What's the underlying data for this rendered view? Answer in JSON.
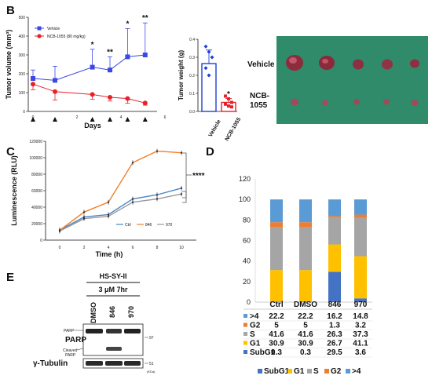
{
  "panel_letters": {
    "b": "B",
    "c": "C",
    "d": "D",
    "e": "E"
  },
  "chart_data": [
    {
      "panel": "B-left",
      "type": "line",
      "ylabel": "Tumor volume (mm³)",
      "xlabel": "Days",
      "ylim": [
        0,
        500
      ],
      "yticks": [
        "0",
        "100",
        "200",
        "300",
        "400",
        "500"
      ],
      "x_tick_labels": [
        "0",
        "2",
        "4",
        "6"
      ],
      "x": [
        0,
        1,
        2.7,
        3.5,
        4.3,
        5.1
      ],
      "series": [
        {
          "name": "Vehicle",
          "color": "#3b48e6",
          "values": [
            175,
            165,
            235,
            220,
            290,
            300
          ],
          "errors": [
            45,
            75,
            95,
            70,
            150,
            170
          ]
        },
        {
          "name": "NCB-1055 (80 mg/kg)",
          "color": "#e8202a",
          "values": [
            145,
            105,
            90,
            75,
            68,
            45
          ],
          "errors": [
            30,
            45,
            25,
            20,
            25,
            12
          ]
        }
      ],
      "significance": [
        {
          "x": 2.7,
          "label": "*"
        },
        {
          "x": 3.5,
          "label": "**"
        },
        {
          "x": 4.3,
          "label": "*"
        },
        {
          "x": 5.1,
          "label": "**"
        }
      ],
      "dosing_days": [
        0,
        1,
        2.7,
        3.5,
        4.3,
        5.1
      ]
    },
    {
      "panel": "B-right",
      "type": "bar",
      "ylabel": "Tumor weight (g)",
      "ylim": [
        0,
        0.4
      ],
      "yticks": [
        "0.0",
        "0.1",
        "0.2",
        "0.3",
        "0.4"
      ],
      "categories": [
        "Vehicle",
        "NCB-1055"
      ],
      "values": [
        0.265,
        0.05
      ],
      "errors": [
        0.075,
        0.022
      ],
      "colors": [
        "#1f3fd6",
        "#e8202a"
      ],
      "points": [
        [
          0.36,
          0.33,
          0.3,
          0.24,
          0.2
        ],
        [
          0.085,
          0.07,
          0.05,
          0.04,
          0.03,
          0.025
        ]
      ],
      "significance": "*"
    },
    {
      "panel": "C",
      "type": "line",
      "ylabel": "Luminescence (RLU)",
      "xlabel": "Time (h)",
      "ylim": [
        0,
        120000
      ],
      "yticks": [
        "0",
        "20000",
        "40000",
        "60000",
        "80000",
        "100000",
        "120000"
      ],
      "x": [
        0,
        2,
        4,
        6,
        8,
        10
      ],
      "series": [
        {
          "name": "Ctrl",
          "color": "#4a86c8",
          "values": [
            12000,
            28000,
            31000,
            50000,
            55000,
            63000
          ]
        },
        {
          "name": "846",
          "color": "#f07f2a",
          "values": [
            12000,
            34000,
            46000,
            94000,
            108000,
            106000
          ]
        },
        {
          "name": "970",
          "color": "#9a9a9a",
          "values": [
            11000,
            26000,
            29000,
            46000,
            50000,
            56000
          ]
        }
      ],
      "significance": "****"
    },
    {
      "panel": "D",
      "type": "bar",
      "stacked": true,
      "ylim": [
        0,
        120
      ],
      "yticks": [
        "0",
        "20",
        "40",
        "60",
        "80",
        "100",
        "120"
      ],
      "categories": [
        "Ctrl",
        "DMSO",
        "846",
        "970"
      ],
      "series": [
        {
          "name": "SubG1",
          "color": "#4472c4",
          "values": [
            0.3,
            0.3,
            29.5,
            3.6
          ]
        },
        {
          "name": "G1",
          "color": "#ffc000",
          "values": [
            30.9,
            30.9,
            26.7,
            41.1
          ]
        },
        {
          "name": "S",
          "color": "#a5a5a5",
          "values": [
            41.6,
            41.6,
            26.3,
            37.3
          ]
        },
        {
          "name": "G2",
          "color": "#ed7d31",
          "values": [
            5,
            5,
            1.3,
            3.2
          ]
        },
        {
          "name": ">4",
          "color": "#5b9bd5",
          "values": [
            22.2,
            22.2,
            16.2,
            14.8
          ]
        }
      ],
      "table_rows": [
        {
          "label": ">4",
          "color": "#5b9bd5",
          "values": [
            "22.2",
            "22.2",
            "16.2",
            "14.8"
          ]
        },
        {
          "label": "G2",
          "color": "#ed7d31",
          "values": [
            "5",
            "5",
            "1.3",
            "3.2"
          ]
        },
        {
          "label": "S",
          "color": "#a5a5a5",
          "values": [
            "41.6",
            "41.6",
            "26.3",
            "37.3"
          ]
        },
        {
          "label": "G1",
          "color": "#ffc000",
          "values": [
            "30.9",
            "30.9",
            "26.7",
            "41.1"
          ]
        },
        {
          "label": "SubG1",
          "color": "#4472c4",
          "values": [
            "0.3",
            "0.3",
            "29.5",
            "3.6"
          ]
        }
      ],
      "legend": [
        "SubG1",
        "G1",
        "S",
        "G2",
        ">4"
      ]
    }
  ],
  "tumor_photo": {
    "row1_label": "Vehicle",
    "row2_label": "NCB-\n1055",
    "row2_line1": "NCB-",
    "row2_line2": "1055",
    "background": "#2f8b6a"
  },
  "western": {
    "cell_line": "HS-SY-II",
    "treatment": "3 μM 7hr",
    "lanes": [
      "DMSO",
      "846",
      "970"
    ],
    "left_labels": {
      "parp_small": "PARP",
      "parp": "PARP",
      "cleaved_1": "Cleaved",
      "cleaved_2": "PARP",
      "tubulin": "γ-Tubulin"
    },
    "mw_markers": {
      "parp": "97",
      "tubulin": "51",
      "unit": "(KDa)"
    }
  }
}
